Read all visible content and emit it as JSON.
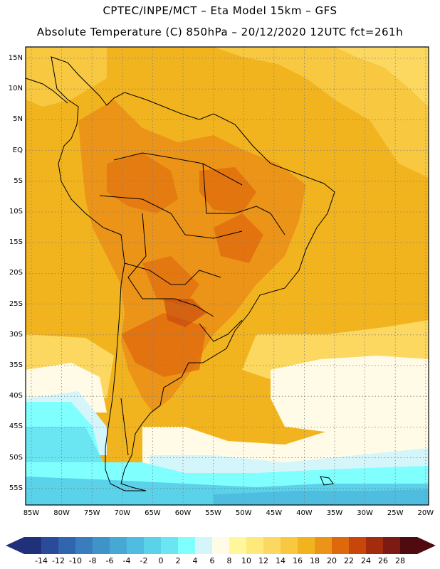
{
  "header": {
    "line1": "CPTEC/INPE/MCT –  Eta Model 15km – GFS",
    "line2": "Absolute Temperature (C) 850hPa – 20/12/2020 12UTC fct=261h"
  },
  "axes": {
    "lat_labels": [
      "15N",
      "10N",
      "5N",
      "EQ",
      "5S",
      "10S",
      "15S",
      "20S",
      "25S",
      "30S",
      "35S",
      "40S",
      "45S",
      "50S",
      "55S"
    ],
    "lon_labels": [
      "85W",
      "80W",
      "75W",
      "70W",
      "65W",
      "60W",
      "55W",
      "50W",
      "45W",
      "40W",
      "35W",
      "30W",
      "25W",
      "20W"
    ]
  },
  "colorbar": {
    "ticks": [
      "-14",
      "-12",
      "-10",
      "-8",
      "-6",
      "-4",
      "-2",
      "0",
      "2",
      "4",
      "6",
      "8",
      "10",
      "12",
      "14",
      "16",
      "18",
      "20",
      "22",
      "24",
      "26",
      "28"
    ],
    "colors": [
      "#20307a",
      "#2a4c98",
      "#2f66ae",
      "#3a7dbe",
      "#3f93c8",
      "#47a8d4",
      "#4fbde0",
      "#5ad2ea",
      "#6ae6f2",
      "#80ffff",
      "#d4f6fb",
      "#fffbe6",
      "#fff79a",
      "#ffe97a",
      "#fdd860",
      "#f7c840",
      "#f2b41e",
      "#ec9418",
      "#e0680c",
      "#c8460c",
      "#a42c0e",
      "#7c1a14",
      "#4e0c10"
    ]
  },
  "icons": {
    "colorbar_left": "arrow-left-icon",
    "colorbar_right": "arrow-right-icon"
  }
}
